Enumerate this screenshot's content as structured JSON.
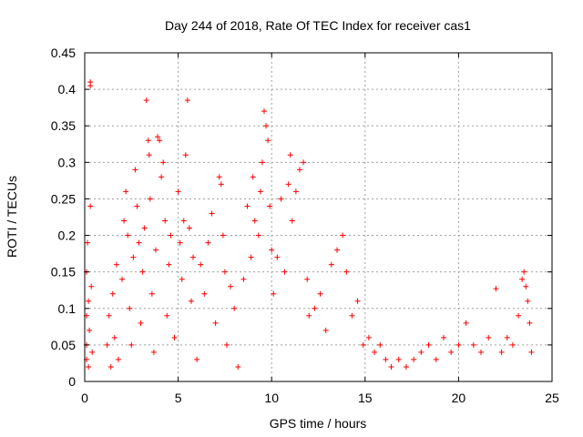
{
  "chart_data": {
    "type": "scatter",
    "title": "Day 244 of 2018, Rate Of TEC Index for receiver cas1",
    "xlabel": "GPS time / hours",
    "ylabel": "ROTI / TECUs",
    "xlim": [
      0,
      25
    ],
    "ylim": [
      0,
      0.45
    ],
    "xticks": [
      0,
      5,
      10,
      15,
      20,
      25
    ],
    "xtick_labels": [
      "0",
      "5",
      "10",
      "15",
      "20",
      "25"
    ],
    "yticks": [
      0,
      0.05,
      0.1,
      0.15,
      0.2,
      0.25,
      0.3,
      0.35,
      0.4,
      0.45
    ],
    "ytick_labels": [
      "0",
      "0.05",
      "0.1",
      "0.15",
      "0.2",
      "0.25",
      "0.3",
      "0.35",
      "0.4",
      "0.45"
    ],
    "grid": true,
    "marker": "+",
    "color": "#ff0000",
    "series": [
      {
        "name": "ROTI",
        "points": [
          [
            0.1,
            0.03
          ],
          [
            0.1,
            0.05
          ],
          [
            0.1,
            0.09
          ],
          [
            0.1,
            0.15
          ],
          [
            0.15,
            0.19
          ],
          [
            0.2,
            0.11
          ],
          [
            0.2,
            0.02
          ],
          [
            0.25,
            0.07
          ],
          [
            0.3,
            0.41
          ],
          [
            0.3,
            0.405
          ],
          [
            0.3,
            0.24
          ],
          [
            0.35,
            0.13
          ],
          [
            0.4,
            0.04
          ],
          [
            1.2,
            0.05
          ],
          [
            1.3,
            0.09
          ],
          [
            1.4,
            0.02
          ],
          [
            1.5,
            0.12
          ],
          [
            1.6,
            0.06
          ],
          [
            1.7,
            0.16
          ],
          [
            1.8,
            0.03
          ],
          [
            2.0,
            0.14
          ],
          [
            2.1,
            0.22
          ],
          [
            2.2,
            0.26
          ],
          [
            2.3,
            0.2
          ],
          [
            2.4,
            0.1
          ],
          [
            2.5,
            0.05
          ],
          [
            2.6,
            0.17
          ],
          [
            2.7,
            0.29
          ],
          [
            2.8,
            0.24
          ],
          [
            2.9,
            0.19
          ],
          [
            3.0,
            0.08
          ],
          [
            3.1,
            0.15
          ],
          [
            3.2,
            0.21
          ],
          [
            3.3,
            0.385
          ],
          [
            3.4,
            0.33
          ],
          [
            3.45,
            0.31
          ],
          [
            3.5,
            0.25
          ],
          [
            3.6,
            0.12
          ],
          [
            3.7,
            0.04
          ],
          [
            3.8,
            0.18
          ],
          [
            3.9,
            0.335
          ],
          [
            4.0,
            0.33
          ],
          [
            4.1,
            0.28
          ],
          [
            4.2,
            0.3
          ],
          [
            4.3,
            0.22
          ],
          [
            4.4,
            0.09
          ],
          [
            4.5,
            0.16
          ],
          [
            4.6,
            0.2
          ],
          [
            4.8,
            0.06
          ],
          [
            5.0,
            0.26
          ],
          [
            5.1,
            0.19
          ],
          [
            5.2,
            0.14
          ],
          [
            5.3,
            0.22
          ],
          [
            5.4,
            0.31
          ],
          [
            5.5,
            0.385
          ],
          [
            5.6,
            0.21
          ],
          [
            5.7,
            0.11
          ],
          [
            5.8,
            0.17
          ],
          [
            6.0,
            0.03
          ],
          [
            6.2,
            0.16
          ],
          [
            6.4,
            0.12
          ],
          [
            6.6,
            0.19
          ],
          [
            6.8,
            0.23
          ],
          [
            7.0,
            0.08
          ],
          [
            7.2,
            0.28
          ],
          [
            7.3,
            0.27
          ],
          [
            7.4,
            0.2
          ],
          [
            7.5,
            0.15
          ],
          [
            7.6,
            0.05
          ],
          [
            7.8,
            0.13
          ],
          [
            8.0,
            0.1
          ],
          [
            8.2,
            0.02
          ],
          [
            8.5,
            0.14
          ],
          [
            8.7,
            0.24
          ],
          [
            8.9,
            0.17
          ],
          [
            9.0,
            0.28
          ],
          [
            9.1,
            0.22
          ],
          [
            9.3,
            0.2
          ],
          [
            9.4,
            0.26
          ],
          [
            9.5,
            0.3
          ],
          [
            9.6,
            0.37
          ],
          [
            9.7,
            0.35
          ],
          [
            9.8,
            0.33
          ],
          [
            9.9,
            0.24
          ],
          [
            10.0,
            0.18
          ],
          [
            10.1,
            0.12
          ],
          [
            10.3,
            0.17
          ],
          [
            10.5,
            0.25
          ],
          [
            10.7,
            0.15
          ],
          [
            10.9,
            0.27
          ],
          [
            11.0,
            0.31
          ],
          [
            11.1,
            0.22
          ],
          [
            11.3,
            0.26
          ],
          [
            11.5,
            0.29
          ],
          [
            11.7,
            0.3
          ],
          [
            11.9,
            0.14
          ],
          [
            12.0,
            0.09
          ],
          [
            12.3,
            0.1
          ],
          [
            12.6,
            0.12
          ],
          [
            12.9,
            0.07
          ],
          [
            13.2,
            0.16
          ],
          [
            13.5,
            0.18
          ],
          [
            13.8,
            0.2
          ],
          [
            14.0,
            0.15
          ],
          [
            14.3,
            0.09
          ],
          [
            14.6,
            0.11
          ],
          [
            14.9,
            0.05
          ],
          [
            15.2,
            0.06
          ],
          [
            15.5,
            0.04
          ],
          [
            15.8,
            0.05
          ],
          [
            16.1,
            0.03
          ],
          [
            16.4,
            0.02
          ],
          [
            16.8,
            0.03
          ],
          [
            17.2,
            0.02
          ],
          [
            17.6,
            0.03
          ],
          [
            18.0,
            0.04
          ],
          [
            18.4,
            0.05
          ],
          [
            18.8,
            0.03
          ],
          [
            19.2,
            0.06
          ],
          [
            19.6,
            0.04
          ],
          [
            20.0,
            0.05
          ],
          [
            20.4,
            0.08
          ],
          [
            20.8,
            0.05
          ],
          [
            21.2,
            0.04
          ],
          [
            21.6,
            0.06
          ],
          [
            22.0,
            0.127
          ],
          [
            22.3,
            0.04
          ],
          [
            22.6,
            0.06
          ],
          [
            22.9,
            0.05
          ],
          [
            23.2,
            0.09
          ],
          [
            23.4,
            0.14
          ],
          [
            23.5,
            0.15
          ],
          [
            23.6,
            0.13
          ],
          [
            23.7,
            0.11
          ],
          [
            23.8,
            0.08
          ],
          [
            23.9,
            0.04
          ]
        ]
      }
    ]
  }
}
